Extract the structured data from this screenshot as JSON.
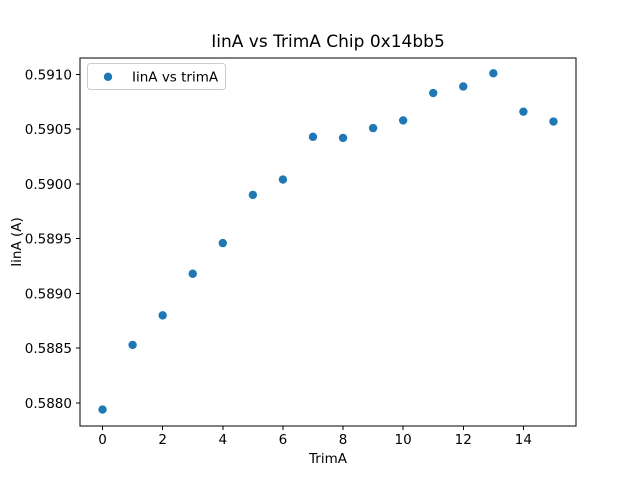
{
  "chart_data": {
    "type": "scatter",
    "title": "IinA vs TrimA Chip 0x14bb5",
    "xlabel": "TrimA",
    "ylabel": "IinA (A)",
    "grid": false,
    "background_color": "#ffffff",
    "axes_edge_color": "#000000",
    "xlim": [
      -0.75,
      15.75
    ],
    "ylim": [
      0.58779,
      0.59115
    ],
    "xticks": [
      {
        "value": 0,
        "label": "0"
      },
      {
        "value": 2,
        "label": "2"
      },
      {
        "value": 4,
        "label": "4"
      },
      {
        "value": 6,
        "label": "6"
      },
      {
        "value": 8,
        "label": "8"
      },
      {
        "value": 10,
        "label": "10"
      },
      {
        "value": 12,
        "label": "12"
      },
      {
        "value": 14,
        "label": "14"
      }
    ],
    "yticks": [
      {
        "value": 0.588,
        "label": "0.5880"
      },
      {
        "value": 0.5885,
        "label": "0.5885"
      },
      {
        "value": 0.589,
        "label": "0.5890"
      },
      {
        "value": 0.5895,
        "label": "0.5895"
      },
      {
        "value": 0.59,
        "label": "0.5900"
      },
      {
        "value": 0.5905,
        "label": "0.5905"
      },
      {
        "value": 0.591,
        "label": "0.5910"
      }
    ],
    "legend": {
      "position": "upper-left",
      "entries": [
        {
          "label": "IinA vs trimA",
          "marker": "circle",
          "color": "#1f77b4"
        }
      ]
    },
    "series": [
      {
        "name": "IinA vs trimA",
        "color": "#1f77b4",
        "marker": "circle",
        "x": [
          0,
          1,
          2,
          3,
          4,
          5,
          6,
          7,
          8,
          9,
          10,
          11,
          12,
          13,
          14,
          15
        ],
        "y": [
          0.58794,
          0.58853,
          0.5888,
          0.58918,
          0.58946,
          0.5899,
          0.59004,
          0.59043,
          0.59042,
          0.59051,
          0.59058,
          0.59083,
          0.59089,
          0.59101,
          0.59066,
          0.59057
        ]
      }
    ]
  }
}
